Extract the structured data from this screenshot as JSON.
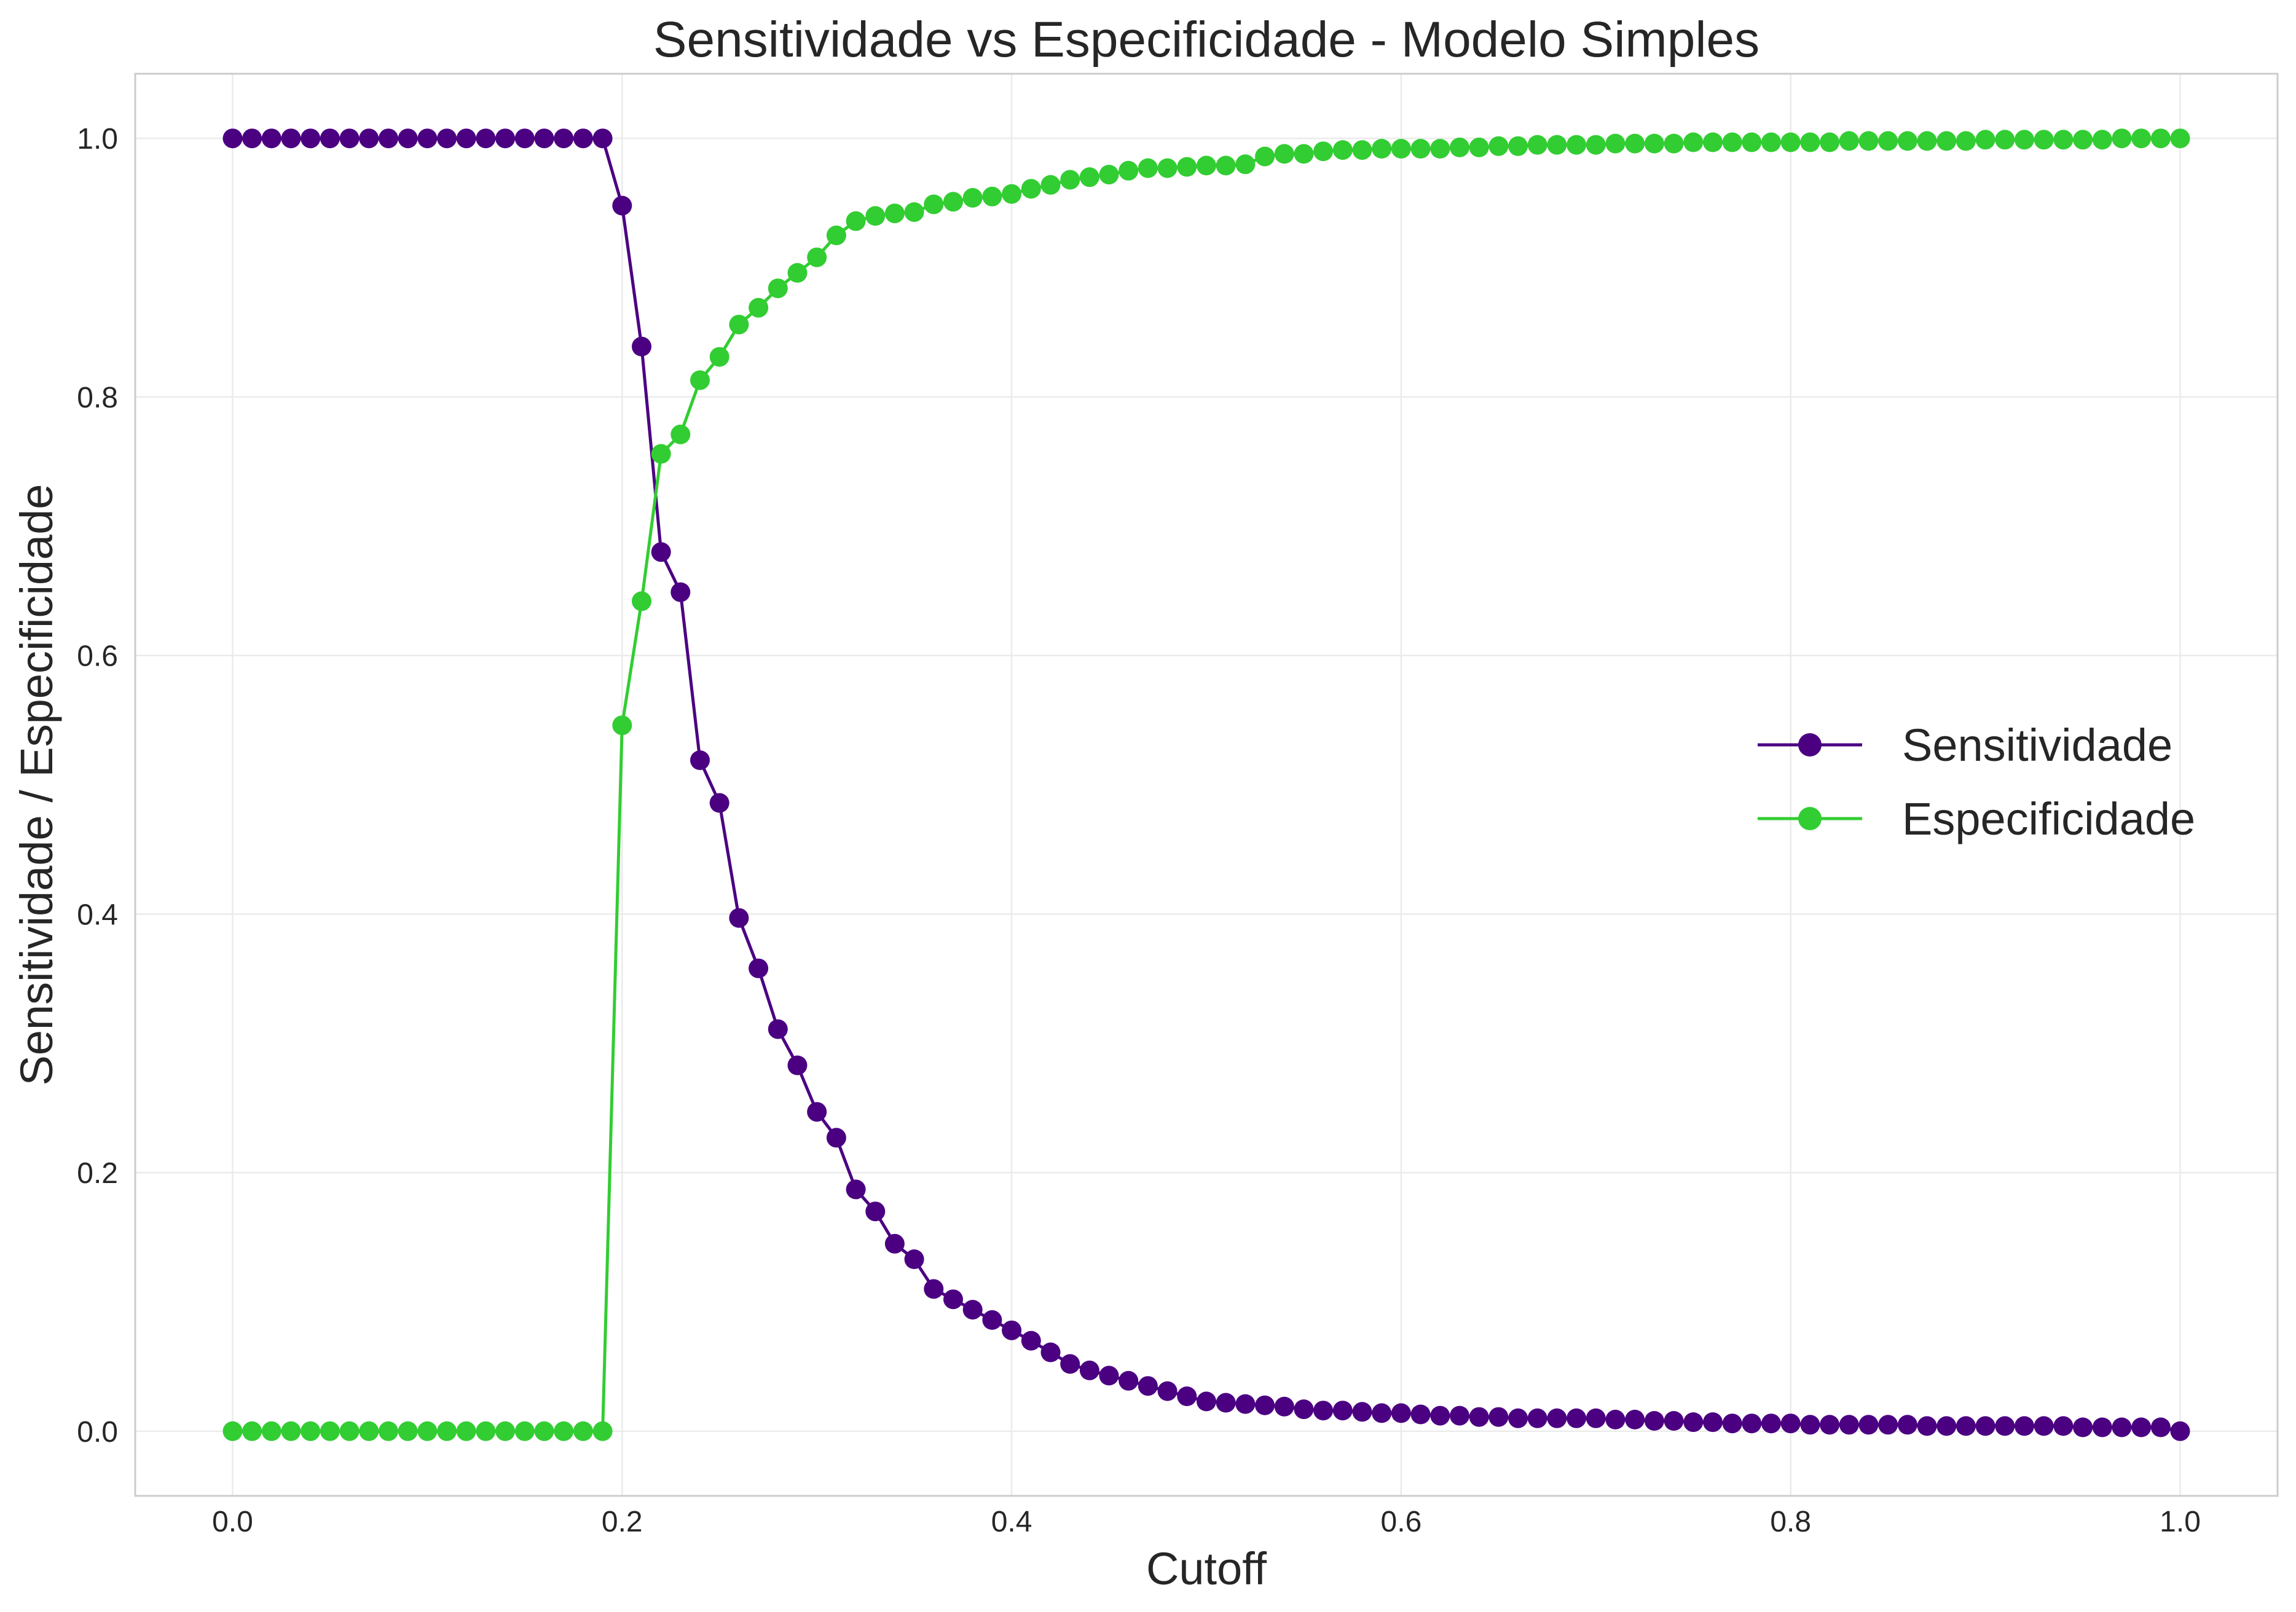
{
  "chart_data": {
    "type": "line",
    "title": "Sensitividade vs Especificidade - Modelo Simples",
    "xlabel": "Cutoff",
    "ylabel": "Sensitividade / Especificidade",
    "xlim": [
      -0.05,
      1.05
    ],
    "ylim": [
      -0.05,
      1.05
    ],
    "xticks": [
      0.0,
      0.2,
      0.4,
      0.6,
      0.8,
      1.0
    ],
    "xtick_labels": [
      "0.0",
      "0.2",
      "0.4",
      "0.6",
      "0.8",
      "1.0"
    ],
    "yticks": [
      0.0,
      0.2,
      0.4,
      0.6,
      0.8,
      1.0
    ],
    "ytick_labels": [
      "0.0",
      "0.2",
      "0.4",
      "0.6",
      "0.8",
      "1.0"
    ],
    "grid": true,
    "legend_position": "center-right",
    "x": [
      0.0,
      0.01,
      0.02,
      0.03,
      0.04,
      0.05,
      0.06,
      0.07,
      0.08,
      0.09,
      0.1,
      0.11,
      0.12,
      0.13,
      0.14,
      0.15,
      0.16,
      0.17,
      0.18,
      0.19,
      0.2,
      0.21,
      0.22,
      0.23,
      0.24,
      0.25,
      0.26,
      0.27,
      0.28,
      0.29,
      0.3,
      0.31,
      0.32,
      0.33,
      0.34,
      0.35,
      0.36,
      0.37,
      0.38,
      0.39,
      0.4,
      0.41,
      0.42,
      0.43,
      0.44,
      0.45,
      0.46,
      0.47,
      0.48,
      0.49,
      0.5,
      0.51,
      0.52,
      0.53,
      0.54,
      0.55,
      0.56,
      0.57,
      0.58,
      0.59,
      0.6,
      0.61,
      0.62,
      0.63,
      0.64,
      0.65,
      0.66,
      0.67,
      0.68,
      0.69,
      0.7,
      0.71,
      0.72,
      0.73,
      0.74,
      0.75,
      0.76,
      0.77,
      0.78,
      0.79,
      0.8,
      0.81,
      0.82,
      0.83,
      0.84,
      0.85,
      0.86,
      0.87,
      0.88,
      0.89,
      0.9,
      0.91,
      0.92,
      0.93,
      0.94,
      0.95,
      0.96,
      0.97,
      0.98,
      0.99,
      1.0
    ],
    "series": [
      {
        "name": "Sensitividade",
        "color": "#4b0082",
        "values": [
          1.0,
          1.0,
          1.0,
          1.0,
          1.0,
          1.0,
          1.0,
          1.0,
          1.0,
          1.0,
          1.0,
          1.0,
          1.0,
          1.0,
          1.0,
          1.0,
          1.0,
          1.0,
          1.0,
          1.0,
          0.948,
          0.839,
          0.68,
          0.649,
          0.519,
          0.486,
          0.397,
          0.358,
          0.311,
          0.283,
          0.247,
          0.227,
          0.187,
          0.17,
          0.145,
          0.133,
          0.11,
          0.102,
          0.094,
          0.086,
          0.078,
          0.07,
          0.061,
          0.052,
          0.047,
          0.043,
          0.039,
          0.035,
          0.031,
          0.027,
          0.023,
          0.022,
          0.021,
          0.02,
          0.019,
          0.017,
          0.016,
          0.016,
          0.015,
          0.014,
          0.014,
          0.013,
          0.012,
          0.012,
          0.011,
          0.011,
          0.01,
          0.01,
          0.01,
          0.01,
          0.01,
          0.009,
          0.009,
          0.008,
          0.008,
          0.007,
          0.007,
          0.006,
          0.006,
          0.006,
          0.006,
          0.005,
          0.005,
          0.005,
          0.005,
          0.005,
          0.005,
          0.004,
          0.004,
          0.004,
          0.004,
          0.004,
          0.004,
          0.004,
          0.004,
          0.003,
          0.003,
          0.003,
          0.003,
          0.003,
          0.0
        ]
      },
      {
        "name": "Especificidade",
        "color": "#32cd32",
        "values": [
          0.0,
          0.0,
          0.0,
          0.0,
          0.0,
          0.0,
          0.0,
          0.0,
          0.0,
          0.0,
          0.0,
          0.0,
          0.0,
          0.0,
          0.0,
          0.0,
          0.0,
          0.0,
          0.0,
          0.0,
          0.546,
          0.642,
          0.756,
          0.771,
          0.813,
          0.831,
          0.856,
          0.869,
          0.884,
          0.896,
          0.908,
          0.925,
          0.936,
          0.94,
          0.942,
          0.943,
          0.949,
          0.951,
          0.954,
          0.955,
          0.957,
          0.961,
          0.964,
          0.968,
          0.97,
          0.972,
          0.975,
          0.977,
          0.977,
          0.978,
          0.979,
          0.979,
          0.98,
          0.986,
          0.988,
          0.988,
          0.99,
          0.991,
          0.991,
          0.992,
          0.992,
          0.992,
          0.992,
          0.993,
          0.993,
          0.994,
          0.994,
          0.995,
          0.995,
          0.995,
          0.995,
          0.996,
          0.996,
          0.996,
          0.996,
          0.997,
          0.997,
          0.997,
          0.997,
          0.997,
          0.997,
          0.997,
          0.997,
          0.998,
          0.998,
          0.998,
          0.998,
          0.998,
          0.998,
          0.998,
          0.999,
          0.999,
          0.999,
          0.999,
          0.999,
          0.999,
          0.999,
          1.0,
          1.0,
          1.0,
          1.0
        ]
      }
    ]
  }
}
